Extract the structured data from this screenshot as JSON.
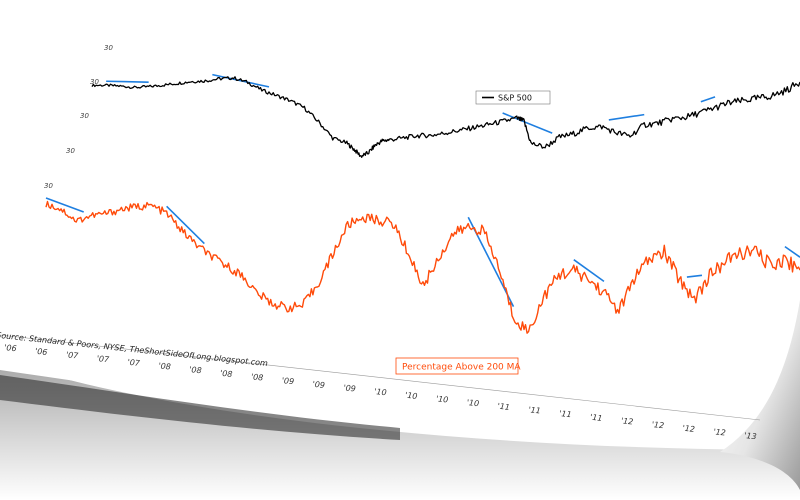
{
  "chart_data": {
    "type": "line",
    "source": "Source: Standard & Poors, NYSE, TheShortSideOfLong.blogspot.com",
    "legend": {
      "label": "S&P 500",
      "placement": "top-center"
    },
    "overlay_label": "Percentage Above 200 MA",
    "x_tick_labels": [
      "'06",
      "'06",
      "'07",
      "'07",
      "'07",
      "'08",
      "'08",
      "'08",
      "'08",
      "'09",
      "'09",
      "'09",
      "'10",
      "'10",
      "'10",
      "'10",
      "'11",
      "'11",
      "'11",
      "'11",
      "'12",
      "'12",
      "'12",
      "'12",
      "'13"
    ],
    "y_tick_labels": [
      "30",
      "30",
      "30",
      "30",
      "30"
    ],
    "series": [
      {
        "name": "S&P 500",
        "color": "#000000",
        "x": [
          0,
          0.02,
          0.04,
          0.06,
          0.08,
          0.1,
          0.12,
          0.14,
          0.16,
          0.18,
          0.2,
          0.22,
          0.24,
          0.26,
          0.28,
          0.3,
          0.32,
          0.34,
          0.36,
          0.37,
          0.38,
          0.39,
          0.4,
          0.41,
          0.42,
          0.44,
          0.46,
          0.48,
          0.5,
          0.52,
          0.54,
          0.56,
          0.58,
          0.6,
          0.61,
          0.62,
          0.64,
          0.66,
          0.68,
          0.7,
          0.72,
          0.74,
          0.76,
          0.78,
          0.8,
          0.82,
          0.84,
          0.86,
          0.88,
          0.9,
          0.92,
          0.94,
          0.96,
          0.98,
          1.0
        ],
        "values": [
          0.68,
          0.7,
          0.7,
          0.69,
          0.72,
          0.76,
          0.8,
          0.84,
          0.86,
          0.9,
          0.92,
          0.86,
          0.76,
          0.7,
          0.64,
          0.56,
          0.4,
          0.22,
          0.18,
          0.12,
          0.05,
          0.1,
          0.2,
          0.26,
          0.28,
          0.32,
          0.36,
          0.38,
          0.42,
          0.46,
          0.5,
          0.54,
          0.58,
          0.62,
          0.6,
          0.4,
          0.38,
          0.48,
          0.52,
          0.58,
          0.6,
          0.56,
          0.54,
          0.64,
          0.66,
          0.7,
          0.72,
          0.76,
          0.8,
          0.84,
          0.86,
          0.88,
          0.9,
          0.94,
          1.0
        ]
      },
      {
        "name": "Percentage Above 200 MA",
        "color": "#ff4b0a",
        "x": [
          0,
          0.02,
          0.04,
          0.06,
          0.08,
          0.1,
          0.12,
          0.14,
          0.16,
          0.18,
          0.2,
          0.22,
          0.24,
          0.26,
          0.28,
          0.3,
          0.32,
          0.34,
          0.36,
          0.38,
          0.4,
          0.42,
          0.44,
          0.46,
          0.48,
          0.5,
          0.52,
          0.54,
          0.56,
          0.58,
          0.6,
          0.62,
          0.64,
          0.66,
          0.68,
          0.7,
          0.72,
          0.74,
          0.76,
          0.78,
          0.8,
          0.82,
          0.84,
          0.86,
          0.88,
          0.9,
          0.92,
          0.94,
          0.96,
          0.98,
          1.0
        ],
        "values": [
          0.92,
          0.86,
          0.72,
          0.8,
          0.84,
          0.9,
          0.94,
          0.96,
          0.88,
          0.7,
          0.55,
          0.44,
          0.36,
          0.28,
          0.12,
          0.04,
          0.02,
          0.06,
          0.28,
          0.58,
          0.86,
          0.94,
          0.92,
          0.9,
          0.66,
          0.38,
          0.62,
          0.84,
          0.9,
          0.88,
          0.6,
          0.22,
          0.12,
          0.4,
          0.58,
          0.62,
          0.56,
          0.48,
          0.36,
          0.6,
          0.74,
          0.8,
          0.62,
          0.5,
          0.66,
          0.76,
          0.82,
          0.84,
          0.76,
          0.8,
          0.74
        ]
      }
    ],
    "peak_markers": [
      {
        "series": "S&P 500",
        "x": [
          0.02,
          0.08
        ]
      },
      {
        "series": "S&P 500",
        "x": [
          0.17,
          0.25
        ]
      },
      {
        "series": "S&P 500",
        "x": [
          0.58,
          0.65
        ]
      },
      {
        "series": "S&P 500",
        "x": [
          0.73,
          0.78
        ]
      },
      {
        "series": "S&P 500",
        "x": [
          0.86,
          0.88
        ]
      },
      {
        "series": "Percentage Above 200 MA",
        "x": [
          0.0,
          0.05
        ]
      },
      {
        "series": "Percentage Above 200 MA",
        "x": [
          0.16,
          0.21
        ]
      },
      {
        "series": "Percentage Above 200 MA",
        "x": [
          0.56,
          0.62
        ]
      },
      {
        "series": "Percentage Above 200 MA",
        "x": [
          0.7,
          0.74
        ]
      },
      {
        "series": "Percentage Above 200 MA",
        "x": [
          0.85,
          0.87
        ]
      },
      {
        "series": "Percentage Above 200 MA",
        "x": [
          0.98,
          1.0
        ]
      }
    ],
    "marker_color": "#1f7fe0",
    "grid": false
  }
}
